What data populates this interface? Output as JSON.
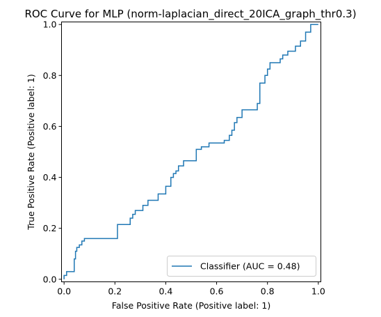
{
  "chart_data": {
    "type": "line",
    "title": "ROC Curve for MLP (norm-laplacian_direct_20ICA_graph_thr0.3)",
    "xlabel": "False Positive Rate (Positive label: 1)",
    "ylabel": "True Positive Rate (Positive label: 1)",
    "xlim": [
      -0.01,
      1.01
    ],
    "ylim": [
      -0.01,
      1.01
    ],
    "xticks": [
      0.0,
      0.2,
      0.4,
      0.6,
      0.8,
      1.0
    ],
    "xtick_labels": [
      "0.0",
      "0.2",
      "0.4",
      "0.6",
      "0.8",
      "1.0"
    ],
    "yticks": [
      0.0,
      0.2,
      0.4,
      0.6,
      0.8,
      1.0
    ],
    "ytick_labels": [
      "0.0",
      "0.2",
      "0.4",
      "0.6",
      "0.8",
      "1.0"
    ],
    "grid": false,
    "legend_position": "bottom-right",
    "series": [
      {
        "name": "Classifier (AUC = 0.48)",
        "color": "#1f77b4",
        "x": [
          0.0,
          0.0,
          0.01,
          0.01,
          0.04,
          0.04,
          0.045,
          0.045,
          0.05,
          0.05,
          0.06,
          0.06,
          0.07,
          0.07,
          0.08,
          0.08,
          0.11,
          0.11,
          0.21,
          0.21,
          0.26,
          0.26,
          0.27,
          0.27,
          0.28,
          0.28,
          0.31,
          0.31,
          0.33,
          0.33,
          0.37,
          0.37,
          0.4,
          0.4,
          0.42,
          0.42,
          0.43,
          0.43,
          0.44,
          0.44,
          0.45,
          0.45,
          0.47,
          0.47,
          0.52,
          0.52,
          0.54,
          0.54,
          0.57,
          0.57,
          0.63,
          0.63,
          0.65,
          0.65,
          0.66,
          0.66,
          0.67,
          0.67,
          0.68,
          0.68,
          0.7,
          0.7,
          0.76,
          0.76,
          0.77,
          0.77,
          0.79,
          0.79,
          0.8,
          0.8,
          0.81,
          0.81,
          0.85,
          0.85,
          0.86,
          0.86,
          0.88,
          0.88,
          0.91,
          0.91,
          0.93,
          0.93,
          0.95,
          0.95,
          0.97,
          0.97,
          1.0
        ],
        "y": [
          0.0,
          0.015,
          0.015,
          0.03,
          0.03,
          0.08,
          0.08,
          0.11,
          0.11,
          0.125,
          0.125,
          0.135,
          0.135,
          0.15,
          0.15,
          0.16,
          0.16,
          0.16,
          0.16,
          0.215,
          0.215,
          0.24,
          0.24,
          0.255,
          0.255,
          0.27,
          0.27,
          0.29,
          0.29,
          0.31,
          0.31,
          0.335,
          0.335,
          0.365,
          0.365,
          0.4,
          0.4,
          0.415,
          0.415,
          0.425,
          0.425,
          0.445,
          0.445,
          0.465,
          0.465,
          0.51,
          0.51,
          0.52,
          0.52,
          0.535,
          0.535,
          0.545,
          0.545,
          0.565,
          0.565,
          0.585,
          0.585,
          0.615,
          0.615,
          0.635,
          0.635,
          0.665,
          0.665,
          0.69,
          0.69,
          0.77,
          0.77,
          0.8,
          0.8,
          0.825,
          0.825,
          0.85,
          0.85,
          0.865,
          0.865,
          0.88,
          0.88,
          0.895,
          0.895,
          0.915,
          0.915,
          0.935,
          0.935,
          0.97,
          0.97,
          1.0,
          1.0
        ]
      }
    ]
  }
}
